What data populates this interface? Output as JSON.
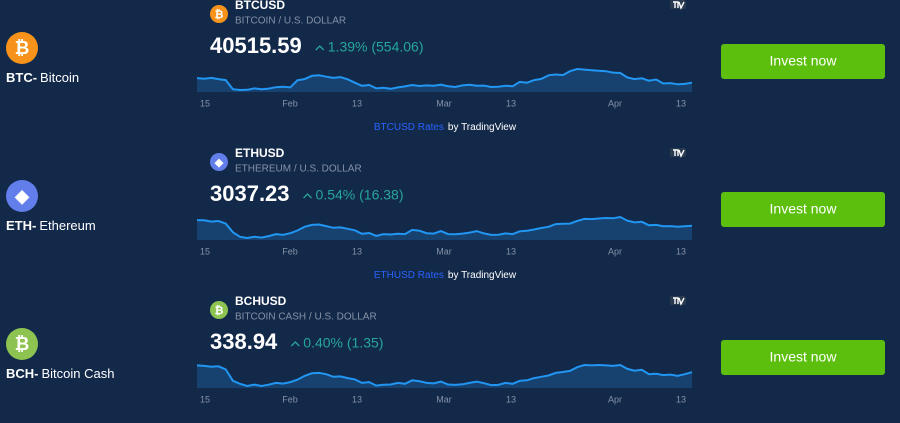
{
  "rows": [
    {
      "code": "BTC-",
      "name": "Bitcoin",
      "symbol": "BTCUSD",
      "pair": "BITCOIN / U.S. DOLLAR",
      "price": "40515.59",
      "change": "1.39% (554.06)",
      "axis_labels": [
        "15",
        "Feb",
        "13",
        "Mar",
        "13",
        "Apr",
        "13"
      ],
      "credit_link": "BTCUSD Rates",
      "credit_by": "by TradingView",
      "button": "Invest now",
      "icon": "#f7931a",
      "icon_char": "₿",
      "spark": [
        42800,
        42500,
        42900,
        42300,
        41800,
        37200,
        36800,
        36900,
        37600,
        37200,
        37500,
        38200,
        38400,
        38100,
        41700,
        42300,
        43900,
        44200,
        43500,
        42900,
        43300,
        42200,
        40500,
        38900,
        39300,
        37600,
        37900,
        37400,
        38100,
        38600,
        39300,
        38800,
        39100,
        38900,
        39500,
        38700,
        38300,
        39100,
        39400,
        38900,
        39000,
        38300,
        38400,
        38900,
        38700,
        40900,
        40500,
        41800,
        42400,
        44200,
        44600,
        44300,
        46300,
        47400,
        47100,
        46800,
        46500,
        46300,
        45600,
        45400,
        43100,
        42300,
        42700,
        41500,
        42100,
        40100,
        40300,
        39700,
        39900,
        40500
      ]
    },
    {
      "code": "ETH-",
      "name": "Ethereum",
      "symbol": "ETHUSD",
      "pair": "ETHEREUM / U.S. DOLLAR",
      "price": "3037.23",
      "change": "0.54% (16.38)",
      "axis_labels": [
        "15",
        "Feb",
        "13",
        "Mar",
        "13",
        "Apr",
        "13"
      ],
      "credit_link": "ETHUSD Rates",
      "credit_by": "by TradingView",
      "button": "Invest now",
      "icon": "#627eea",
      "icon_char": "◆",
      "spark": [
        3330,
        3320,
        3250,
        3280,
        3150,
        2700,
        2460,
        2400,
        2460,
        2420,
        2500,
        2600,
        2560,
        2650,
        2790,
        2980,
        3080,
        3100,
        3020,
        2930,
        2950,
        2880,
        2800,
        2620,
        2660,
        2510,
        2600,
        2580,
        2620,
        2600,
        2820,
        2780,
        2650,
        2630,
        2760,
        2600,
        2590,
        2630,
        2680,
        2760,
        2640,
        2560,
        2570,
        2640,
        2600,
        2750,
        2780,
        2840,
        2920,
        2980,
        3120,
        3140,
        3150,
        3290,
        3390,
        3380,
        3410,
        3440,
        3420,
        3490,
        3300,
        3210,
        3240,
        3060,
        3080,
        3010,
        3020,
        2980,
        3010,
        3037
      ]
    },
    {
      "code": "BCH-",
      "name": "Bitcoin Cash",
      "symbol": "BCHUSD",
      "pair": "BITCOIN CASH / U.S. DOLLAR",
      "price": "338.94",
      "change": "0.40% (1.35)",
      "axis_labels": [
        "15",
        "Feb",
        "13",
        "Mar",
        "13",
        "Apr",
        "13"
      ],
      "button": "Invest now",
      "icon": "#8dc351",
      "icon_char": "₿",
      "spark": [
        370,
        368,
        364,
        366,
        352,
        300,
        286,
        276,
        282,
        276,
        282,
        290,
        287,
        294,
        305,
        322,
        334,
        336,
        330,
        318,
        320,
        312,
        306,
        290,
        294,
        278,
        282,
        283,
        290,
        286,
        302,
        298,
        290,
        288,
        296,
        283,
        281,
        284,
        290,
        296,
        289,
        280,
        281,
        290,
        286,
        300,
        302,
        312,
        318,
        324,
        336,
        340,
        345,
        362,
        372,
        370,
        372,
        370,
        368,
        372,
        354,
        346,
        350,
        330,
        332,
        326,
        328,
        322,
        330,
        339
      ]
    }
  ]
}
